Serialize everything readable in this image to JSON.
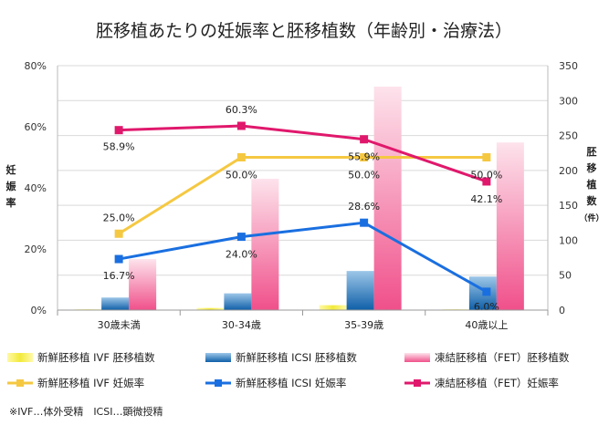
{
  "chart_data": {
    "type": "bar+line",
    "title": "胚移植あたりの妊娠率と胚移植数（年齢別・治療法）",
    "categories": [
      "30歳未満",
      "30-34歳",
      "35-39歳",
      "40歳以上"
    ],
    "y_left": {
      "label": "妊娠率",
      "ticks": [
        "0%",
        "20%",
        "40%",
        "60%",
        "80%"
      ],
      "range": [
        0,
        80
      ]
    },
    "y_right": {
      "label": "胚移植数（件）",
      "ticks": [
        "0",
        "50",
        "100",
        "150",
        "200",
        "250",
        "300",
        "350"
      ],
      "range": [
        0,
        350
      ]
    },
    "bar_series": [
      {
        "name": "新鮮胚移植 IVF 胚移植数",
        "color": "#f2ea3a",
        "values": [
          1,
          3,
          7,
          1
        ]
      },
      {
        "name": "新鮮胚移植 ICSI 胚移植数",
        "color": "#2a7fc0",
        "values": [
          18,
          24,
          56,
          48
        ]
      },
      {
        "name": "凍結胚移植（FET）胚移植数",
        "color": "#f06292",
        "values": [
          73,
          188,
          320,
          240
        ]
      }
    ],
    "line_series": [
      {
        "name": "新鮮胚移植 IVF 妊娠率",
        "color": "#f5c842",
        "values": [
          25.0,
          50.0,
          50.0,
          50.0
        ],
        "labels": [
          "25.0%",
          "50.0%",
          "50.0%",
          "50.0%"
        ]
      },
      {
        "name": "新鮮胚移植 ICSI 妊娠率",
        "color": "#1a6fe0",
        "values": [
          16.7,
          24.0,
          28.6,
          6.0
        ],
        "labels": [
          "16.7%",
          "24.0%",
          "28.6%",
          "6.0%"
        ]
      },
      {
        "name": "凍結胚移植（FET）妊娠率",
        "color": "#e0186c",
        "values": [
          58.9,
          60.3,
          55.9,
          42.1
        ],
        "labels": [
          "58.9%",
          "60.3%",
          "55.9%",
          "42.1%"
        ]
      }
    ],
    "footnote": "※IVF…体外受精　ICSI…顕微授精"
  }
}
